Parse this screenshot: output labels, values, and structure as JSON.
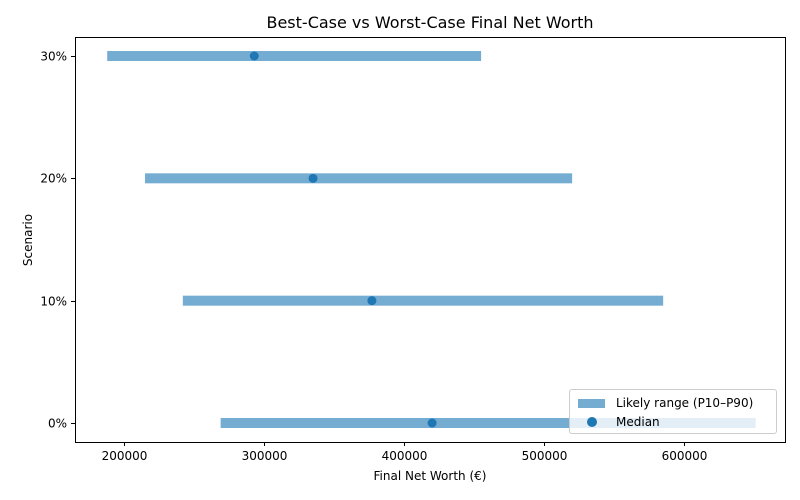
{
  "chart_data": {
    "type": "range-dot",
    "title": "Best-Case vs Worst-Case Final Net Worth",
    "xlabel": "Final Net Worth (€)",
    "ylabel": "Scenario",
    "xlim": [
      165000,
      672000
    ],
    "xticks": [
      200000,
      300000,
      400000,
      500000,
      600000
    ],
    "categories": [
      "0%",
      "10%",
      "20%",
      "30%"
    ],
    "series": [
      {
        "name": "Likely range (P10–P90)",
        "kind": "range",
        "low": [
          269000,
          242000,
          215000,
          188000
        ],
        "high": [
          651000,
          585000,
          520000,
          455000
        ],
        "color": "#74acd2"
      },
      {
        "name": "Median",
        "kind": "scatter",
        "values": [
          420000,
          377000,
          335000,
          293000
        ],
        "color": "#1f77b4"
      }
    ],
    "legend_position": "lower right",
    "grid": false
  },
  "legend": {
    "range_label": "Likely range (P10–P90)",
    "median_label": "Median"
  }
}
